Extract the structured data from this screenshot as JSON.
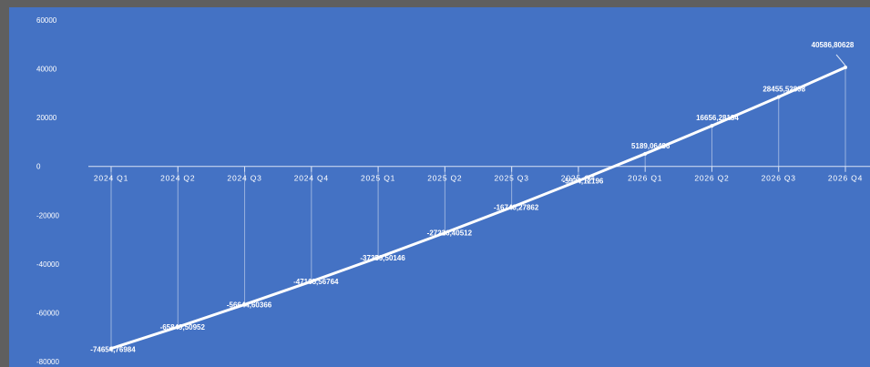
{
  "chart_data": {
    "type": "line",
    "categories": [
      "2024 Q1",
      "2024 Q2",
      "2024 Q3",
      "2024 Q4",
      "2025 Q1",
      "2025 Q2",
      "2025 Q3",
      "2025 Q4",
      "2026 Q1",
      "2026 Q2",
      "2026 Q3",
      "2026 Q4"
    ],
    "values": [
      -74654.76984,
      -65849.50952,
      -56644.60366,
      -47165.56764,
      -37359.50146,
      -27226.40512,
      -16740.27862,
      -5934.12196,
      5189.06486,
      16656.28184,
      28455.52898,
      40586.80628
    ],
    "data_labels": [
      "-74654,76984",
      "-65849,50952",
      "-56644,60366",
      "-47165,56764",
      "-37359,50146",
      "-27226,40512",
      "-16740,27862",
      "-5934,12196",
      "5189,06486",
      "16656,28184",
      "28455,52898",
      "40586,80628"
    ],
    "y_ticks": [
      60000,
      40000,
      20000,
      0,
      -20000,
      -40000,
      -60000,
      -80000
    ],
    "ylim": [
      -80000,
      60000
    ],
    "title": "",
    "xlabel": "",
    "ylabel": "",
    "grid": false,
    "legend": "none",
    "colors": {
      "background": "#4472c4",
      "outer": "#5f5f5f",
      "line": "#ffffff",
      "text": "#ffffff"
    }
  }
}
